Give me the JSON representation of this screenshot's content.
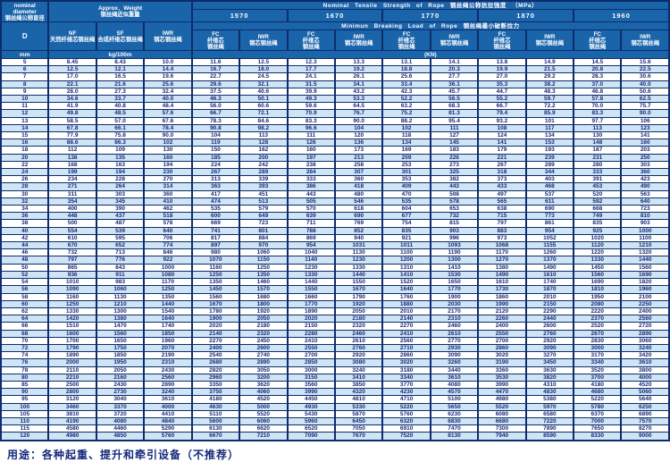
{
  "colors": {
    "header_bg": "#1a64aa",
    "row_alt_bg": "#cfe4f5",
    "grid_border": "#0d2c6b",
    "data_text": "#1b2a75"
  },
  "table": {
    "diameter_header": {
      "en": "nominal diameter",
      "zh": "钢丝绳公称直径",
      "symbol": "D",
      "unit": "mm"
    },
    "weight_header": {
      "title_en": "Approx．Weight",
      "title_zh": "钢丝绳近似重量",
      "unit": "kg/100m",
      "cols": [
        {
          "abbr": "NF",
          "zh": "天然纤维芯钢丝绳"
        },
        {
          "abbr": "SF",
          "zh": "合成纤维芯钢丝绳"
        },
        {
          "abbr": "IWR",
          "zh": "钢芯钢丝绳"
        }
      ]
    },
    "strength_header": {
      "title": "Nominal Tensile Strength of Rope 钢丝绳公称抗拉强度 （MPa）",
      "grades": [
        "1570",
        "1670",
        "1770",
        "1870",
        "1960"
      ]
    },
    "breaking_header": {
      "title": "Minimun Breaking Load of Rope 钢丝绳最小破断拉力",
      "unit": "(KN)",
      "subcols": [
        {
          "abbr": "FC",
          "zh": "纤维芯钢丝绳"
        },
        {
          "abbr": "IWR",
          "zh": "钢芯钢丝绳"
        }
      ]
    },
    "rows": [
      [
        "5",
        "8.45",
        "8.43",
        "10.0",
        "11.6",
        "12.5",
        "12.3",
        "13.3",
        "13.1",
        "14.1",
        "13.8",
        "14.9",
        "14.5",
        "15.6"
      ],
      [
        "6",
        "12.5",
        "12.1",
        "14.4",
        "16.7",
        "18.0",
        "17.7",
        "19.2",
        "18.8",
        "20.3",
        "19.9",
        "21.5",
        "20.8",
        "22.5"
      ],
      [
        "7",
        "17.0",
        "16.5",
        "19.6",
        "22.7",
        "24.5",
        "24.1",
        "26.1",
        "25.6",
        "27.7",
        "27.0",
        "29.2",
        "28.3",
        "30.6"
      ],
      [
        "8",
        "22.1",
        "21.6",
        "25.6",
        "29.6",
        "32.1",
        "31.5",
        "34.1",
        "33.4",
        "36.1",
        "35.3",
        "38.2",
        "37.0",
        "40.0"
      ],
      [
        "9",
        "28.0",
        "27.3",
        "32.4",
        "37.5",
        "40.6",
        "39.9",
        "43.2",
        "42.3",
        "45.7",
        "44.7",
        "48.3",
        "46.8",
        "50.6"
      ],
      [
        "10",
        "34.6",
        "33.7",
        "40.0",
        "46.3",
        "50.1",
        "49.3",
        "53.3",
        "52.2",
        "56.5",
        "55.2",
        "59.7",
        "57.8",
        "62.5"
      ],
      [
        "11",
        "41.9",
        "40.8",
        "48.4",
        "56.0",
        "60.6",
        "59.6",
        "64.5",
        "63.2",
        "68.3",
        "66.7",
        "72.2",
        "70.0",
        "75.7"
      ],
      [
        "12",
        "49.8",
        "48.5",
        "57.6",
        "66.7",
        "72.1",
        "70.9",
        "76.7",
        "75.2",
        "81.3",
        "79.4",
        "85.9",
        "83.3",
        "90.0"
      ],
      [
        "13",
        "58.5",
        "57.0",
        "67.6",
        "78.3",
        "84.6",
        "83.3",
        "90.0",
        "88.2",
        "95.4",
        "93.2",
        "101",
        "97.7",
        "106"
      ],
      [
        "14",
        "67.8",
        "66.1",
        "78.4",
        "90.8",
        "98.2",
        "96.6",
        "104",
        "102",
        "111",
        "108",
        "117",
        "113",
        "123"
      ],
      [
        "15",
        "77.9",
        "75.8",
        "90.0",
        "104",
        "113",
        "111",
        "120",
        "118",
        "127",
        "124",
        "134",
        "130",
        "141"
      ],
      [
        "16",
        "88.6",
        "86.3",
        "102",
        "119",
        "128",
        "126",
        "136",
        "134",
        "145",
        "141",
        "153",
        "148",
        "160"
      ],
      [
        "18",
        "112",
        "109",
        "130",
        "150",
        "162",
        "160",
        "173",
        "169",
        "183",
        "179",
        "193",
        "187",
        "203"
      ],
      [
        "20",
        "138",
        "135",
        "160",
        "185",
        "200",
        "197",
        "213",
        "209",
        "226",
        "221",
        "239",
        "231",
        "250"
      ],
      [
        "22",
        "168",
        "163",
        "194",
        "224",
        "242",
        "238",
        "258",
        "253",
        "273",
        "267",
        "289",
        "280",
        "303"
      ],
      [
        "24",
        "199",
        "194",
        "230",
        "267",
        "289",
        "284",
        "307",
        "301",
        "325",
        "318",
        "344",
        "333",
        "360"
      ],
      [
        "26",
        "234",
        "228",
        "270",
        "313",
        "339",
        "333",
        "360",
        "353",
        "382",
        "373",
        "403",
        "391",
        "423"
      ],
      [
        "28",
        "271",
        "264",
        "314",
        "363",
        "393",
        "386",
        "418",
        "409",
        "443",
        "433",
        "468",
        "453",
        "490"
      ],
      [
        "30",
        "311",
        "303",
        "360",
        "417",
        "451",
        "443",
        "480",
        "470",
        "508",
        "497",
        "537",
        "520",
        "563"
      ],
      [
        "32",
        "354",
        "345",
        "410",
        "474",
        "513",
        "505",
        "546",
        "535",
        "578",
        "565",
        "611",
        "592",
        "640"
      ],
      [
        "34",
        "400",
        "390",
        "462",
        "535",
        "579",
        "570",
        "618",
        "604",
        "653",
        "638",
        "690",
        "668",
        "723"
      ],
      [
        "36",
        "448",
        "437",
        "518",
        "600",
        "649",
        "639",
        "690",
        "677",
        "732",
        "715",
        "773",
        "749",
        "810"
      ],
      [
        "38",
        "500",
        "487",
        "578",
        "669",
        "723",
        "711",
        "769",
        "754",
        "815",
        "797",
        "861",
        "835",
        "903"
      ],
      [
        "40",
        "554",
        "539",
        "640",
        "741",
        "801",
        "788",
        "852",
        "835",
        "903",
        "883",
        "954",
        "925",
        "1000"
      ],
      [
        "42",
        "610",
        "595",
        "706",
        "817",
        "884",
        "869",
        "940",
        "921",
        "996",
        "973",
        "1052",
        "1020",
        "1100"
      ],
      [
        "44",
        "670",
        "652",
        "774",
        "897",
        "970",
        "954",
        "1031",
        "1011",
        "1093",
        "1068",
        "1155",
        "1120",
        "1210"
      ],
      [
        "46",
        "732",
        "713",
        "846",
        "980",
        "1060",
        "1040",
        "1130",
        "1100",
        "1190",
        "1170",
        "1260",
        "1220",
        "1320"
      ],
      [
        "48",
        "797",
        "776",
        "922",
        "1070",
        "1150",
        "1140",
        "1230",
        "1200",
        "1300",
        "1270",
        "1370",
        "1330",
        "1440"
      ],
      [
        "50",
        "865",
        "843",
        "1000",
        "1160",
        "1250",
        "1230",
        "1330",
        "1310",
        "1410",
        "1380",
        "1490",
        "1450",
        "1560"
      ],
      [
        "52",
        "936",
        "911",
        "1080",
        "1250",
        "1350",
        "1330",
        "1440",
        "1410",
        "1530",
        "1490",
        "1610",
        "1560",
        "1690"
      ],
      [
        "54",
        "1010",
        "983",
        "1170",
        "1350",
        "1460",
        "1440",
        "1550",
        "1520",
        "1650",
        "1610",
        "1740",
        "1690",
        "1820"
      ],
      [
        "56",
        "1090",
        "1060",
        "1250",
        "1450",
        "1570",
        "1550",
        "1670",
        "1640",
        "1770",
        "1730",
        "1870",
        "1810",
        "1960"
      ],
      [
        "58",
        "1160",
        "1130",
        "1350",
        "1560",
        "1680",
        "1660",
        "1790",
        "1760",
        "1900",
        "1860",
        "2010",
        "1950",
        "2100"
      ],
      [
        "60",
        "1250",
        "1210",
        "1440",
        "1670",
        "1800",
        "1770",
        "1920",
        "1880",
        "2030",
        "1990",
        "2150",
        "2080",
        "2250"
      ],
      [
        "62",
        "1330",
        "1300",
        "1540",
        "1780",
        "1920",
        "1890",
        "2050",
        "2010",
        "2170",
        "2120",
        "2290",
        "2220",
        "2400"
      ],
      [
        "64",
        "1420",
        "1380",
        "1640",
        "1900",
        "2050",
        "2020",
        "2180",
        "2140",
        "2310",
        "2260",
        "2440",
        "2370",
        "2560"
      ],
      [
        "66",
        "1510",
        "1470",
        "1740",
        "2020",
        "2180",
        "2150",
        "2320",
        "2270",
        "2460",
        "2400",
        "2600",
        "2520",
        "2720"
      ],
      [
        "68",
        "1600",
        "1560",
        "1850",
        "2140",
        "2320",
        "2280",
        "2460",
        "2410",
        "2610",
        "2550",
        "2760",
        "2670",
        "2890"
      ],
      [
        "70",
        "1700",
        "1650",
        "1960",
        "2270",
        "2450",
        "2410",
        "2610",
        "2560",
        "2770",
        "2700",
        "2920",
        "2830",
        "3060"
      ],
      [
        "72",
        "1790",
        "1750",
        "2070",
        "2400",
        "2600",
        "2550",
        "2760",
        "2710",
        "2930",
        "2860",
        "3090",
        "3000",
        "3240"
      ],
      [
        "74",
        "1890",
        "1850",
        "2190",
        "2540",
        "2740",
        "2700",
        "2920",
        "2860",
        "3090",
        "3020",
        "3270",
        "3170",
        "3420"
      ],
      [
        "76",
        "2000",
        "1950",
        "2310",
        "2680",
        "2890",
        "2850",
        "3080",
        "3020",
        "3260",
        "3190",
        "3450",
        "3340",
        "3610"
      ],
      [
        "78",
        "2110",
        "2050",
        "2430",
        "2820",
        "3050",
        "3000",
        "3240",
        "3180",
        "3440",
        "3360",
        "3630",
        "3520",
        "3800"
      ],
      [
        "80",
        "2210",
        "2160",
        "2560",
        "2960",
        "3200",
        "3150",
        "3410",
        "3340",
        "3610",
        "3530",
        "3820",
        "3700",
        "4000"
      ],
      [
        "85",
        "2500",
        "2430",
        "2890",
        "3350",
        "3620",
        "3560",
        "3850",
        "3770",
        "4080",
        "3990",
        "4310",
        "4180",
        "4520"
      ],
      [
        "90",
        "2800",
        "2730",
        "3240",
        "3750",
        "4060",
        "3990",
        "4320",
        "4230",
        "4570",
        "4470",
        "4830",
        "4680",
        "5060"
      ],
      [
        "95",
        "3120",
        "3040",
        "3610",
        "4180",
        "4520",
        "4450",
        "4810",
        "4710",
        "5100",
        "4980",
        "5380",
        "5220",
        "5640"
      ],
      [
        "100",
        "3460",
        "3370",
        "4000",
        "4630",
        "5000",
        "4930",
        "5330",
        "5220",
        "5650",
        "5520",
        "5970",
        "5780",
        "6250"
      ],
      [
        "105",
        "3810",
        "3720",
        "4410",
        "5110",
        "5520",
        "5430",
        "5870",
        "5760",
        "6230",
        "6080",
        "6580",
        "6370",
        "6890"
      ],
      [
        "110",
        "4190",
        "4080",
        "4840",
        "5600",
        "6060",
        "5960",
        "6450",
        "6320",
        "6830",
        "6680",
        "7220",
        "7000",
        "7570"
      ],
      [
        "115",
        "4580",
        "4460",
        "5290",
        "6130",
        "6620",
        "6520",
        "7050",
        "6910",
        "7470",
        "7300",
        "7890",
        "7650",
        "8270"
      ],
      [
        "120",
        "4980",
        "4850",
        "5760",
        "6670",
        "7210",
        "7090",
        "7670",
        "7520",
        "8130",
        "7940",
        "8590",
        "8330",
        "9000"
      ]
    ]
  },
  "footer": {
    "usage": "用途：各种起重、提升和牵引设备（不推荐）"
  }
}
